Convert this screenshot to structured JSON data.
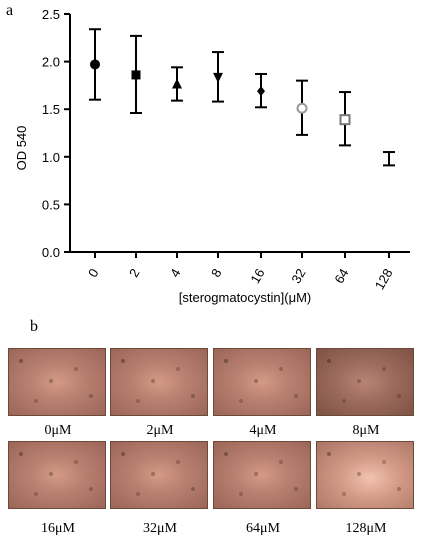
{
  "panel_a_label": "a",
  "panel_b_label": "b",
  "chart_data": {
    "type": "scatter",
    "categories": [
      "0",
      "2",
      "4",
      "8",
      "16",
      "32",
      "64",
      "128"
    ],
    "values": [
      1.97,
      1.86,
      1.76,
      1.84,
      1.69,
      1.51,
      1.39,
      null
    ],
    "error_low": [
      1.6,
      1.46,
      1.59,
      1.58,
      1.52,
      1.23,
      1.12,
      0.91
    ],
    "error_high": [
      2.34,
      2.27,
      1.94,
      2.1,
      1.87,
      1.8,
      1.68,
      1.05
    ],
    "markers": [
      "circle",
      "square",
      "triangle-up",
      "triangle-down",
      "diamond",
      "circle-open",
      "square-open",
      "none"
    ],
    "marker_colors": [
      "#000000",
      "#000000",
      "#000000",
      "#000000",
      "#000000",
      "#999999",
      "#777777",
      "#000000"
    ],
    "xlabel": "[sterogmatocystin](μM)",
    "ylabel": "OD 540",
    "ylim": [
      0.0,
      2.5
    ],
    "yticks": [
      "0.0",
      "0.5",
      "1.0",
      "1.5",
      "2.0",
      "2.5"
    ],
    "grid": false
  },
  "micrographs": [
    {
      "label": "0μM",
      "tone": "normal"
    },
    {
      "label": "2μM",
      "tone": "normal"
    },
    {
      "label": "4μM",
      "tone": "normal"
    },
    {
      "label": "8μM",
      "tone": "dark"
    },
    {
      "label": "16μM",
      "tone": "normal"
    },
    {
      "label": "32μM",
      "tone": "normal"
    },
    {
      "label": "64μM",
      "tone": "normal"
    },
    {
      "label": "128μM",
      "tone": "bright"
    }
  ]
}
